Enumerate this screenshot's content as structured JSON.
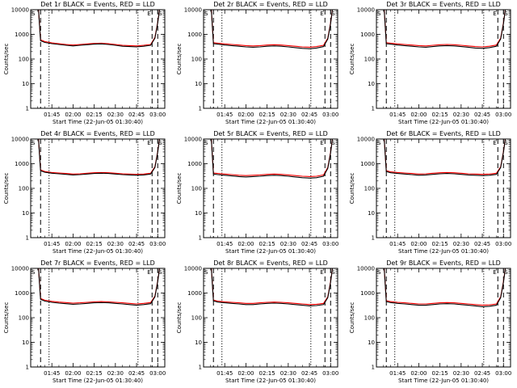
{
  "figure": {
    "xlabel": "Start Time (22-Jun-05 01:30:40)",
    "ylabel": "Counts/sec",
    "x_tick_labels": [
      "01:45",
      "02:00",
      "02:15",
      "02:30",
      "02:45",
      "03:00"
    ],
    "y_tick_labels": [
      "1",
      "10",
      "100",
      "1000",
      "10000"
    ],
    "markers": {
      "left": "S",
      "right_a": "E",
      "right_b": "S"
    },
    "colors": {
      "events": "#000000",
      "lld": "#ff0000",
      "axis": "#000000"
    }
  },
  "chart_data": [
    {
      "type": "line",
      "title": "Det 1r BLACK = Events, RED = LLD",
      "x": [
        95,
        97,
        100,
        105,
        110,
        115,
        120,
        125,
        130,
        135,
        140,
        145,
        150,
        155,
        160,
        165,
        170,
        175,
        178,
        180,
        182
      ],
      "series": [
        {
          "name": "Events",
          "color": "#000000",
          "values": [
            30000,
            550,
            470,
            420,
            390,
            360,
            340,
            360,
            380,
            400,
            410,
            390,
            360,
            330,
            320,
            310,
            330,
            360,
            700,
            3000,
            20000
          ]
        },
        {
          "name": "LLD",
          "color": "#ff0000",
          "values": [
            30000,
            600,
            510,
            450,
            420,
            390,
            370,
            390,
            410,
            430,
            440,
            420,
            390,
            360,
            350,
            340,
            360,
            390,
            750,
            3200,
            20000
          ]
        }
      ],
      "xlim": [
        90,
        185
      ],
      "ylim": [
        1,
        10000
      ],
      "y_scale": "log",
      "vertical_lines": [
        {
          "x": 103,
          "style": "dotted"
        },
        {
          "x": 166,
          "style": "dotted"
        },
        {
          "x": 97,
          "style": "dash"
        },
        {
          "x": 176,
          "style": "dash"
        },
        {
          "x": 180,
          "style": "dash"
        }
      ]
    },
    {
      "type": "line",
      "title": "Det 2r BLACK = Events, RED = LLD",
      "x": [
        95,
        97,
        100,
        105,
        110,
        115,
        120,
        125,
        130,
        135,
        140,
        145,
        150,
        155,
        160,
        165,
        170,
        175,
        178,
        180,
        182
      ],
      "series": [
        {
          "name": "Events",
          "color": "#000000",
          "values": [
            30000,
            420,
            400,
            370,
            350,
            330,
            310,
            300,
            310,
            330,
            340,
            330,
            310,
            290,
            270,
            260,
            280,
            320,
            650,
            2800,
            20000
          ]
        },
        {
          "name": "LLD",
          "color": "#ff0000",
          "values": [
            30000,
            460,
            440,
            410,
            390,
            370,
            350,
            340,
            350,
            370,
            380,
            370,
            350,
            330,
            310,
            300,
            320,
            360,
            700,
            3000,
            20000
          ]
        }
      ],
      "xlim": [
        90,
        185
      ],
      "ylim": [
        1,
        10000
      ],
      "y_scale": "log",
      "vertical_lines": [
        {
          "x": 103,
          "style": "dotted"
        },
        {
          "x": 166,
          "style": "dotted"
        },
        {
          "x": 97,
          "style": "dash"
        },
        {
          "x": 176,
          "style": "dash"
        },
        {
          "x": 180,
          "style": "dash"
        }
      ]
    },
    {
      "type": "line",
      "title": "Det 3r BLACK = Events, RED = LLD",
      "x": [
        95,
        97,
        100,
        105,
        110,
        115,
        120,
        125,
        130,
        135,
        140,
        145,
        150,
        155,
        160,
        165,
        170,
        175,
        178,
        180,
        182
      ],
      "series": [
        {
          "name": "Events",
          "color": "#000000",
          "values": [
            30000,
            420,
            400,
            370,
            350,
            330,
            310,
            300,
            320,
            340,
            350,
            340,
            320,
            300,
            280,
            270,
            290,
            330,
            650,
            2800,
            20000
          ]
        },
        {
          "name": "LLD",
          "color": "#ff0000",
          "values": [
            30000,
            460,
            440,
            410,
            390,
            370,
            350,
            340,
            360,
            380,
            390,
            380,
            360,
            340,
            320,
            310,
            330,
            370,
            700,
            3000,
            20000
          ]
        }
      ],
      "xlim": [
        90,
        185
      ],
      "ylim": [
        1,
        10000
      ],
      "y_scale": "log",
      "vertical_lines": [
        {
          "x": 103,
          "style": "dotted"
        },
        {
          "x": 166,
          "style": "dotted"
        },
        {
          "x": 97,
          "style": "dash"
        },
        {
          "x": 176,
          "style": "dash"
        },
        {
          "x": 180,
          "style": "dash"
        }
      ]
    },
    {
      "type": "line",
      "title": "Det 4r BLACK = Events, RED = LLD",
      "x": [
        95,
        97,
        100,
        105,
        110,
        115,
        120,
        125,
        130,
        135,
        140,
        145,
        150,
        155,
        160,
        165,
        170,
        175,
        178,
        180,
        182
      ],
      "series": [
        {
          "name": "Events",
          "color": "#000000",
          "values": [
            30000,
            520,
            450,
            410,
            390,
            370,
            350,
            360,
            380,
            400,
            410,
            400,
            380,
            360,
            350,
            340,
            350,
            380,
            700,
            3000,
            20000
          ]
        },
        {
          "name": "LLD",
          "color": "#ff0000",
          "values": [
            30000,
            560,
            480,
            440,
            420,
            400,
            380,
            390,
            410,
            430,
            440,
            430,
            410,
            390,
            380,
            370,
            380,
            410,
            750,
            3200,
            20000
          ]
        }
      ],
      "xlim": [
        90,
        185
      ],
      "ylim": [
        1,
        10000
      ],
      "y_scale": "log",
      "vertical_lines": [
        {
          "x": 103,
          "style": "dotted"
        },
        {
          "x": 166,
          "style": "dotted"
        },
        {
          "x": 97,
          "style": "dash"
        },
        {
          "x": 176,
          "style": "dash"
        },
        {
          "x": 180,
          "style": "dash"
        }
      ]
    },
    {
      "type": "line",
      "title": "Det 5r BLACK = Events, RED = LLD",
      "x": [
        95,
        97,
        100,
        105,
        110,
        115,
        120,
        125,
        130,
        135,
        140,
        145,
        150,
        155,
        160,
        165,
        170,
        175,
        178,
        180,
        182
      ],
      "series": [
        {
          "name": "Events",
          "color": "#000000",
          "values": [
            30000,
            380,
            360,
            340,
            320,
            300,
            290,
            300,
            310,
            330,
            340,
            330,
            310,
            290,
            270,
            260,
            270,
            310,
            650,
            2800,
            20000
          ]
        },
        {
          "name": "LLD",
          "color": "#ff0000",
          "values": [
            30000,
            420,
            400,
            380,
            360,
            340,
            330,
            340,
            350,
            370,
            380,
            370,
            350,
            330,
            310,
            300,
            310,
            350,
            700,
            3000,
            20000
          ]
        }
      ],
      "xlim": [
        90,
        185
      ],
      "ylim": [
        1,
        10000
      ],
      "y_scale": "log",
      "vertical_lines": [
        {
          "x": 103,
          "style": "dotted"
        },
        {
          "x": 166,
          "style": "dotted"
        },
        {
          "x": 97,
          "style": "dash"
        },
        {
          "x": 176,
          "style": "dash"
        },
        {
          "x": 180,
          "style": "dash"
        }
      ]
    },
    {
      "type": "line",
      "title": "Det 6r BLACK = Events, RED = LLD",
      "x": [
        95,
        97,
        100,
        105,
        110,
        115,
        120,
        125,
        130,
        135,
        140,
        145,
        150,
        155,
        160,
        165,
        170,
        175,
        178,
        180,
        182
      ],
      "series": [
        {
          "name": "Events",
          "color": "#000000",
          "values": [
            30000,
            480,
            430,
            400,
            380,
            360,
            340,
            350,
            370,
            390,
            400,
            390,
            370,
            350,
            340,
            330,
            340,
            370,
            700,
            3000,
            20000
          ]
        },
        {
          "name": "LLD",
          "color": "#ff0000",
          "values": [
            30000,
            520,
            470,
            440,
            420,
            400,
            380,
            390,
            410,
            430,
            440,
            430,
            410,
            390,
            380,
            370,
            380,
            410,
            750,
            3200,
            20000
          ]
        }
      ],
      "xlim": [
        90,
        185
      ],
      "ylim": [
        1,
        10000
      ],
      "y_scale": "log",
      "vertical_lines": [
        {
          "x": 103,
          "style": "dotted"
        },
        {
          "x": 166,
          "style": "dotted"
        },
        {
          "x": 97,
          "style": "dash"
        },
        {
          "x": 176,
          "style": "dash"
        },
        {
          "x": 180,
          "style": "dash"
        }
      ]
    },
    {
      "type": "line",
      "title": "Det 7r BLACK = Events, RED = LLD",
      "x": [
        95,
        97,
        100,
        105,
        110,
        115,
        120,
        125,
        130,
        135,
        140,
        145,
        150,
        155,
        160,
        165,
        170,
        175,
        178,
        180,
        182
      ],
      "series": [
        {
          "name": "Events",
          "color": "#000000",
          "values": [
            30000,
            560,
            470,
            420,
            390,
            370,
            350,
            360,
            380,
            400,
            410,
            400,
            380,
            360,
            340,
            320,
            340,
            370,
            700,
            3000,
            20000
          ]
        },
        {
          "name": "LLD",
          "color": "#ff0000",
          "values": [
            30000,
            600,
            510,
            460,
            430,
            410,
            390,
            400,
            420,
            440,
            450,
            440,
            420,
            400,
            380,
            360,
            380,
            410,
            750,
            3200,
            20000
          ]
        }
      ],
      "xlim": [
        90,
        185
      ],
      "ylim": [
        1,
        10000
      ],
      "y_scale": "log",
      "vertical_lines": [
        {
          "x": 103,
          "style": "dotted"
        },
        {
          "x": 166,
          "style": "dotted"
        },
        {
          "x": 97,
          "style": "dash"
        },
        {
          "x": 176,
          "style": "dash"
        },
        {
          "x": 180,
          "style": "dash"
        }
      ]
    },
    {
      "type": "line",
      "title": "Det 8r BLACK = Events, RED = LLD",
      "x": [
        95,
        97,
        100,
        105,
        110,
        115,
        120,
        125,
        130,
        135,
        140,
        145,
        150,
        155,
        160,
        165,
        170,
        175,
        178,
        180,
        182
      ],
      "series": [
        {
          "name": "Events",
          "color": "#000000",
          "values": [
            30000,
            480,
            430,
            400,
            380,
            360,
            340,
            340,
            360,
            380,
            390,
            380,
            360,
            340,
            320,
            300,
            310,
            340,
            650,
            2800,
            20000
          ]
        },
        {
          "name": "LLD",
          "color": "#ff0000",
          "values": [
            30000,
            520,
            470,
            440,
            420,
            400,
            380,
            380,
            400,
            420,
            430,
            420,
            400,
            380,
            360,
            340,
            350,
            380,
            700,
            3000,
            20000
          ]
        }
      ],
      "xlim": [
        90,
        185
      ],
      "ylim": [
        1,
        10000
      ],
      "y_scale": "log",
      "vertical_lines": [
        {
          "x": 103,
          "style": "dotted"
        },
        {
          "x": 166,
          "style": "dotted"
        },
        {
          "x": 97,
          "style": "dash"
        },
        {
          "x": 176,
          "style": "dash"
        },
        {
          "x": 180,
          "style": "dash"
        }
      ]
    },
    {
      "type": "line",
      "title": "Det 9r BLACK = Events, RED = LLD",
      "x": [
        95,
        97,
        100,
        105,
        110,
        115,
        120,
        125,
        130,
        135,
        140,
        145,
        150,
        155,
        160,
        165,
        170,
        175,
        178,
        180,
        182
      ],
      "series": [
        {
          "name": "Events",
          "color": "#000000",
          "values": [
            30000,
            450,
            410,
            380,
            360,
            340,
            320,
            320,
            340,
            360,
            370,
            360,
            340,
            320,
            300,
            280,
            290,
            320,
            650,
            2800,
            20000
          ]
        },
        {
          "name": "LLD",
          "color": "#ff0000",
          "values": [
            30000,
            490,
            450,
            420,
            400,
            380,
            360,
            360,
            380,
            400,
            410,
            400,
            380,
            360,
            340,
            320,
            330,
            360,
            700,
            3000,
            20000
          ]
        }
      ],
      "xlim": [
        90,
        185
      ],
      "ylim": [
        1,
        10000
      ],
      "y_scale": "log",
      "vertical_lines": [
        {
          "x": 103,
          "style": "dotted"
        },
        {
          "x": 166,
          "style": "dotted"
        },
        {
          "x": 97,
          "style": "dash"
        },
        {
          "x": 176,
          "style": "dash"
        },
        {
          "x": 180,
          "style": "dash"
        }
      ]
    }
  ]
}
